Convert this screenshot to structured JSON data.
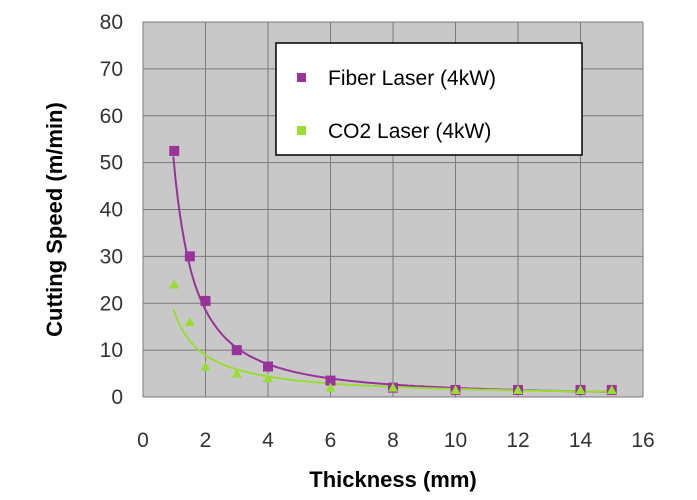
{
  "chart_data": {
    "type": "scatter",
    "title": "",
    "xlabel": "Thickness (mm)",
    "ylabel": "Cutting Speed (m/min)",
    "xlim": [
      0,
      16
    ],
    "ylim": [
      0,
      80
    ],
    "x_ticks": [
      "0",
      "2",
      "4",
      "6",
      "8",
      "10",
      "12",
      "14",
      "16"
    ],
    "y_ticks": [
      "0",
      "10",
      "20",
      "30",
      "40",
      "50",
      "60",
      "70",
      "80"
    ],
    "grid": true,
    "background": "#c8c8c8",
    "legend_position": "top-right",
    "series": [
      {
        "name": "Fiber Laser (4kW)",
        "color": "#993399",
        "marker": "square",
        "x": [
          1,
          1.5,
          2,
          3,
          4,
          6,
          8,
          10,
          12,
          14,
          15
        ],
        "y": [
          52.5,
          30,
          20.5,
          10,
          6.5,
          3.5,
          2,
          1.5,
          1.5,
          1.5,
          1.5
        ],
        "trendline": "power"
      },
      {
        "name": "CO2 Laser (4kW)",
        "color": "#99dd33",
        "marker": "triangle",
        "x": [
          1,
          1.5,
          2,
          3,
          4,
          6,
          8,
          10,
          12,
          14,
          15
        ],
        "y": [
          24,
          16,
          6.5,
          5,
          4,
          2,
          2,
          1.5,
          1.5,
          1.5,
          1.5
        ],
        "trendline": "power"
      }
    ]
  }
}
